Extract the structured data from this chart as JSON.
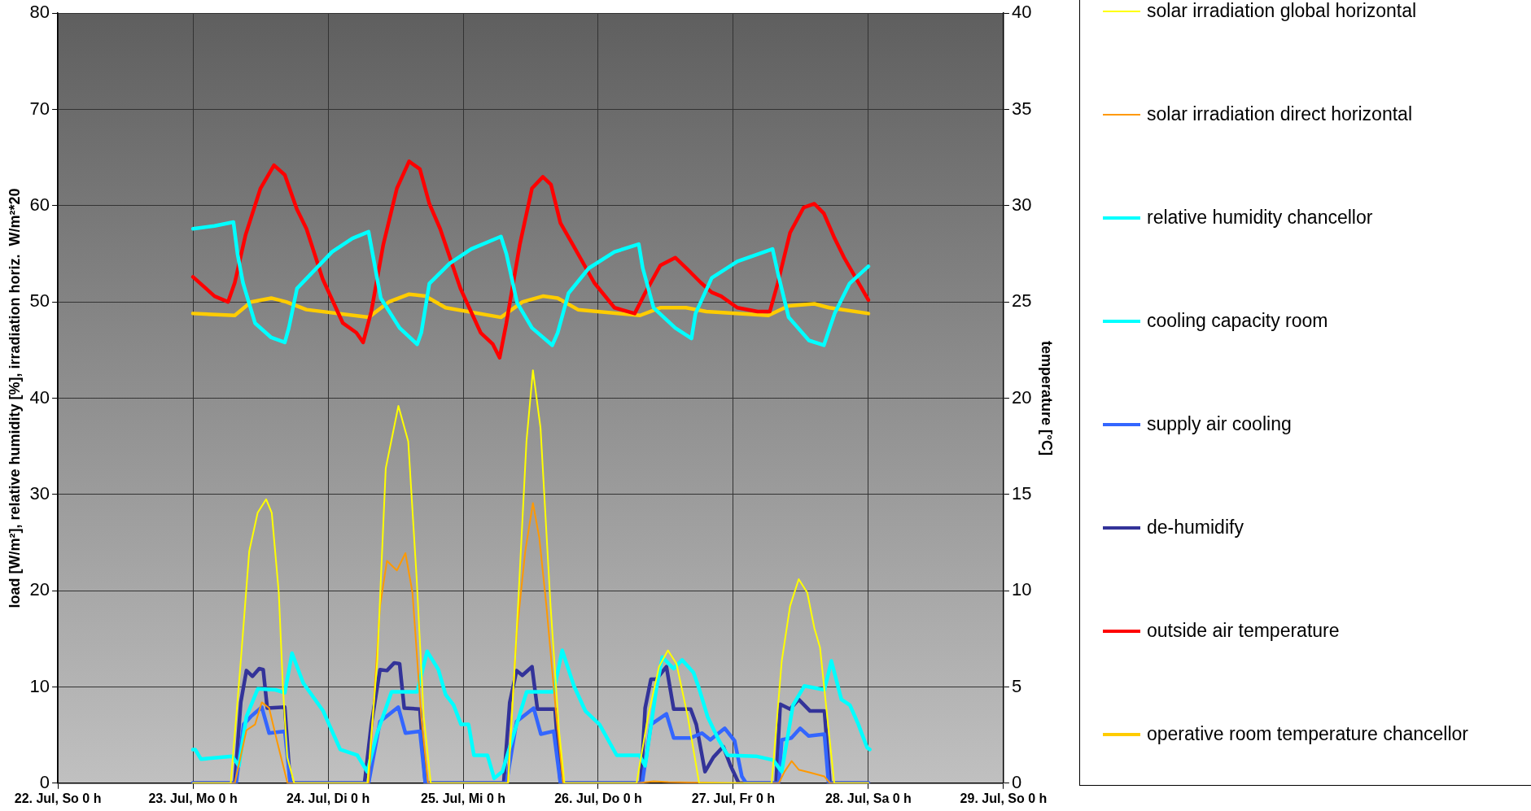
{
  "chart_data": {
    "type": "line",
    "ylabel": "load [W/m²], relative humidity [%], irradiation horiz.  W/m²*20",
    "y2label": "temperature [°C]",
    "xlim": [
      "--07-22",
      "--07-29"
    ],
    "xticks": [
      {
        "value": "--07-22",
        "label": "22. Jul, So 0 h"
      },
      {
        "value": "--07-23",
        "label": "23. Jul, Mo 0 h"
      },
      {
        "value": "--07-24",
        "label": "24. Jul, Di 0 h"
      },
      {
        "value": "--07-25",
        "label": "25. Jul, Mi 0 h"
      },
      {
        "value": "--07-26",
        "label": "26. Jul, Do 0 h"
      },
      {
        "value": "--07-27",
        "label": "27. Jul, Fr 0 h"
      },
      {
        "value": "--07-28",
        "label": "28. Jul, Sa 0 h"
      },
      {
        "value": "--07-29",
        "label": "29. Jul, So 0 h"
      }
    ],
    "ylim": [
      0,
      80
    ],
    "yticks": [
      0,
      10,
      20,
      30,
      40,
      50,
      60,
      70,
      80
    ],
    "y2lim": [
      0,
      40
    ],
    "y2ticks": [
      0,
      5,
      10,
      15,
      20,
      25,
      30,
      35,
      40
    ],
    "grid": true,
    "legend": "right",
    "marker": "none",
    "line_style": "solid",
    "series": [
      {
        "name": "solar irradiation global horizontal",
        "color": "#ffff00",
        "x": [
          "--07-23T00:00",
          "--07-23T06:43",
          "--07-23T08:30",
          "--07-23T10:00",
          "--07-23T11:30",
          "--07-23T13:00",
          "--07-23T14:00",
          "--07-23T15:15",
          "--07-23T16:00",
          "--07-23T16:45",
          "--07-23T18:00",
          "--07-24T07:00",
          "--07-24T08:45",
          "--07-24T10:15",
          "--07-24T12:30",
          "--07-24T14:15",
          "--07-24T15:45",
          "--07-24T17:00",
          "--07-24T18:15",
          "--07-25T08:00",
          "--07-25T09:45",
          "--07-25T11:15",
          "--07-25T12:24",
          "--07-25T13:45",
          "--07-25T15:32",
          "--07-25T17:02",
          "--07-25T18:00",
          "--07-26T06:49",
          "--07-26T08:50",
          "--07-26T10:48",
          "--07-26T12:23",
          "--07-26T13:54",
          "--07-26T15:55",
          "--07-26T17:56",
          "--07-27T06:49",
          "--07-27T08:36",
          "--07-27T10:05",
          "--07-27T11:37",
          "--07-27T13:08",
          "--07-27T14:24",
          "--07-27T15:24",
          "--07-27T16:41",
          "--07-27T17:56",
          "--07-28T00:00"
        ],
        "values": [
          0,
          0,
          12.7,
          24.1,
          28.1,
          29.5,
          28.1,
          19.8,
          9.8,
          2.7,
          0,
          0,
          12.7,
          32.7,
          39.2,
          35.5,
          21.2,
          6.9,
          0,
          0,
          18.4,
          35.5,
          42.9,
          36.9,
          18.4,
          5.5,
          0,
          0,
          6.9,
          12.1,
          13.8,
          12.4,
          6.9,
          0,
          0,
          12.7,
          18.4,
          21.2,
          19.8,
          16.1,
          14.1,
          6.9,
          0,
          0
        ]
      },
      {
        "name": "solar irradiation direct horizontal",
        "color": "#ff9900",
        "x": [
          "--07-23T00:00",
          "--07-23T07:26",
          "--07-23T09:30",
          "--07-23T11:02",
          "--07-23T12:14",
          "--07-23T13:32",
          "--07-23T15:03",
          "--07-23T16:48",
          "--07-24T07:12",
          "--07-24T09:14",
          "--07-24T10:28",
          "--07-24T12:14",
          "--07-24T13:45",
          "--07-24T15:00",
          "--07-24T16:34",
          "--07-24T17:46",
          "--07-25T07:55",
          "--07-25T09:30",
          "--07-25T11:02",
          "--07-25T12:24",
          "--07-25T13:32",
          "--07-25T14:48",
          "--07-25T16:34",
          "--07-25T17:46",
          "--07-26T07:12",
          "--07-26T09:50",
          "--07-26T12:29",
          "--07-26T23:02",
          "--07-27T08:05",
          "--07-27T09:06",
          "--07-27T10:22",
          "--07-27T11:37",
          "--07-27T13:38",
          "--07-27T16:11",
          "--07-27T17:11",
          "--07-28T00:00"
        ],
        "values": [
          0,
          0,
          5.5,
          6.1,
          8.4,
          7.8,
          4.1,
          0,
          0,
          18.4,
          23.1,
          22.1,
          23.9,
          19.8,
          6.9,
          0,
          0,
          15.5,
          24.1,
          29.1,
          25.5,
          18.4,
          6.9,
          0,
          0,
          0.2,
          0.1,
          0,
          0,
          1.2,
          2.3,
          1.4,
          1.1,
          0.7,
          0,
          0
        ]
      },
      {
        "name": "relative humidity chancellor",
        "color": "#00ffff",
        "x": [
          "--07-23T00:00",
          "--07-23T03:50",
          "--07-23T07:12",
          "--07-23T07:55",
          "--07-23T08:53",
          "--07-23T11:02",
          "--07-23T13:55",
          "--07-23T16:19",
          "--07-23T17:02",
          "--07-23T18:29",
          "--07-23T21:07",
          "--07-24T00:43",
          "--07-24T04:19",
          "--07-24T07:12",
          "--07-24T07:55",
          "--07-24T09:22",
          "--07-24T12:43",
          "--07-24T15:50",
          "--07-24T16:34",
          "--07-24T18:00",
          "--07-24T21:36",
          "--07-25T01:26",
          "--07-25T06:43",
          "--07-25T07:41",
          "--07-25T09:36",
          "--07-25T12:14",
          "--07-25T15:50",
          "--07-25T16:48",
          "--07-25T18:43",
          "--07-25T22:19",
          "--07-26T02:53",
          "--07-26T07:12",
          "--07-26T07:55",
          "--07-26T09:50",
          "--07-26T13:41",
          "--07-26T16:34",
          "--07-26T17:17",
          "--07-26T20:10",
          "--07-27T00:43",
          "--07-27T06:58",
          "--07-27T07:55",
          "--07-27T09:50",
          "--07-27T13:26",
          "--07-27T16:05",
          "--07-27T18:00",
          "--07-27T20:38",
          "--07-28T00:00"
        ],
        "values": [
          57.6,
          57.9,
          58.3,
          55,
          52,
          47.8,
          46.3,
          45.8,
          47.3,
          51.4,
          53,
          55.2,
          56.6,
          57.3,
          55,
          50.4,
          47.3,
          45.6,
          46.8,
          51.9,
          54,
          55.5,
          56.8,
          55,
          49.9,
          47.3,
          45.5,
          46.8,
          50.9,
          53.5,
          55.2,
          56,
          53.5,
          49.4,
          47.3,
          46.2,
          48.8,
          52.5,
          54.2,
          55.5,
          53,
          48.4,
          46,
          45.5,
          48.8,
          51.9,
          53.7
        ]
      },
      {
        "name": "cooling capacity room",
        "color": "#00ffff",
        "x": [
          "--07-23T00:00",
          "--07-23T00:24",
          "--07-23T01:25",
          "--07-23T06:58",
          "--07-23T08:10",
          "--07-23T09:30",
          "--07-23T11:31",
          "--07-23T14:38",
          "--07-23T16:19",
          "--07-23T17:36",
          "--07-23T19:36",
          "--07-23T23:08",
          "--07-24T02:10",
          "--07-24T05:12",
          "--07-24T06:58",
          "--07-24T08:44",
          "--07-24T11:17",
          "--07-24T15:50",
          "--07-24T17:36",
          "--07-24T19:36",
          "--07-24T20:53",
          "--07-24T22:19",
          "--07-24T23:38",
          "--07-25T00:58",
          "--07-25T01:55",
          "--07-25T04:19",
          "--07-25T05:31",
          "--07-25T06:58",
          "--07-25T08:47",
          "--07-25T11:17",
          "--07-25T16:05",
          "--07-25T17:36",
          "--07-25T19:41",
          "--07-25T21:43",
          "--07-26T00:14",
          "--07-26T03:17",
          "--07-26T07:19",
          "--07-26T08:20",
          "--07-26T10:19",
          "--07-26T11:23",
          "--07-26T13:24",
          "--07-26T14:54",
          "--07-26T16:55",
          "--07-26T17:56",
          "--07-26T19:26",
          "--07-26T21:29",
          "--07-26T22:59",
          "--07-27T04:02",
          "--07-27T07:05",
          "--07-27T08:36",
          "--07-27T10:36",
          "--07-27T12:37",
          "--07-27T16:11",
          "--07-27T17:25",
          "--07-27T19:12",
          "--07-27T20:43",
          "--07-27T22:13",
          "--07-27T23:46",
          "--07-28T00:14"
        ],
        "values": [
          3.5,
          3.5,
          2.5,
          2.8,
          1.8,
          6.9,
          9.8,
          9.7,
          9.4,
          13.5,
          10.4,
          7.5,
          3.5,
          2.9,
          1.2,
          5.2,
          9.5,
          9.5,
          13.7,
          11.8,
          9.2,
          8.1,
          6.1,
          6.1,
          2.9,
          2.9,
          0.5,
          1.2,
          4.7,
          9.5,
          9.5,
          13.8,
          10.1,
          7.5,
          6.1,
          2.9,
          2.9,
          1.8,
          9.8,
          13.1,
          11.9,
          12.8,
          11.5,
          9.8,
          6.9,
          4.4,
          2.9,
          2.8,
          2.4,
          1.2,
          8.1,
          10.1,
          9.7,
          12.7,
          8.7,
          8.1,
          6.1,
          3.7,
          3.5
        ]
      },
      {
        "name": "supply air cooling",
        "color": "#3366ff",
        "x": [
          "--07-23T00:00",
          "--07-23T07:41",
          "--07-23T09:00",
          "--07-23T10:15",
          "--07-23T12:14",
          "--07-23T13:32",
          "--07-23T16:19",
          "--07-23T17:17",
          "--07-24T07:12",
          "--07-24T09:14",
          "--07-24T12:29",
          "--07-24T13:45",
          "--07-24T16:19",
          "--07-24T17:17",
          "--07-25T07:41",
          "--07-25T09:30",
          "--07-25T12:32",
          "--07-25T13:48",
          "--07-25T16:05",
          "--07-25T17:17",
          "--07-26T07:49",
          "--07-26T09:22",
          "--07-26T12:07",
          "--07-26T13:24",
          "--07-26T16:25",
          "--07-26T18:26",
          "--07-26T19:55",
          "--07-26T22:29",
          "--07-27T00:14",
          "--07-27T01:31",
          "--07-27T02:17",
          "--07-27T08:05",
          "--07-27T08:36",
          "--07-27T10:19",
          "--07-27T11:53",
          "--07-27T13:24",
          "--07-27T16:11",
          "--07-27T16:55",
          "--07-28T00:00"
        ],
        "values": [
          0,
          0,
          6.1,
          6.9,
          7.9,
          5.2,
          5.4,
          0,
          0,
          6.4,
          7.9,
          5.2,
          5.4,
          0,
          0,
          6.4,
          7.8,
          5.1,
          5.4,
          0,
          0,
          6.1,
          7.2,
          4.7,
          4.7,
          5.2,
          4.5,
          5.7,
          4.4,
          0.7,
          0,
          0,
          4.5,
          4.7,
          5.7,
          4.9,
          5.1,
          0,
          0
        ]
      },
      {
        "name": "de-humidify",
        "color": "#333399",
        "x": [
          "--07-23T00:00",
          "--07-23T07:26",
          "--07-23T08:30",
          "--07-23T09:30",
          "--07-23T10:34",
          "--07-23T11:46",
          "--07-23T12:29",
          "--07-23T13:12",
          "--07-23T16:19",
          "--07-23T17:17",
          "--07-24T06:29",
          "--07-24T07:41",
          "--07-24T09:14",
          "--07-24T10:28",
          "--07-24T11:46",
          "--07-24T12:43",
          "--07-24T13:32",
          "--07-24T16:19",
          "--07-24T17:17",
          "--07-25T07:12",
          "--07-25T08:17",
          "--07-25T09:30",
          "--07-25T10:31",
          "--07-25T12:14",
          "--07-25T13:12",
          "--07-25T16:19",
          "--07-25T17:17",
          "--07-26T07:35",
          "--07-26T08:20",
          "--07-26T09:22",
          "--07-26T10:19",
          "--07-26T12:07",
          "--07-26T13:24",
          "--07-26T16:25",
          "--07-26T17:25",
          "--07-26T18:58",
          "--07-26T20:28",
          "--07-26T22:13",
          "--07-26T23:31",
          "--07-27T00:58",
          "--07-27T07:35",
          "--07-27T08:20",
          "--07-27T10:05",
          "--07-27T11:37",
          "--07-27T13:38",
          "--07-27T16:11",
          "--07-27T17:11",
          "--07-28T00:00"
        ],
        "values": [
          0,
          0,
          8.4,
          11.7,
          11.1,
          11.9,
          11.8,
          7.8,
          7.9,
          0,
          0,
          6.1,
          11.8,
          11.7,
          12.5,
          12.4,
          7.8,
          7.7,
          0,
          0,
          8.4,
          11.7,
          11.2,
          12.1,
          7.7,
          7.7,
          0,
          0,
          7.8,
          10.8,
          10.8,
          12.1,
          7.7,
          7.7,
          6.1,
          1.2,
          2.7,
          3.8,
          1.8,
          0,
          0,
          8.2,
          7.7,
          8.7,
          7.5,
          7.5,
          0,
          0
        ]
      },
      {
        "name": "outside air temperature",
        "color": "#ff0000",
        "axis": "y2",
        "x": [
          "--07-23T00:00",
          "--07-23T03:50",
          "--07-23T06:14",
          "--07-23T07:26",
          "--07-23T09:22",
          "--07-23T12:00",
          "--07-23T14:24",
          "--07-23T16:19",
          "--07-23T18:29",
          "--07-23T20:10",
          "--07-23T23:02",
          "--07-24T02:38",
          "--07-24T05:02",
          "--07-24T06:14",
          "--07-24T07:41",
          "--07-24T09:50",
          "--07-24T12:14",
          "--07-24T14:24",
          "--07-24T16:19",
          "--07-24T18:00",
          "--07-24T19:55",
          "--07-24T23:31",
          "--07-25T03:07",
          "--07-25T05:17",
          "--07-25T06:29",
          "--07-25T07:41",
          "--07-25T10:05",
          "--07-25T12:14",
          "--07-25T14:10",
          "--07-25T15:36",
          "--07-25T17:17",
          "--07-25T19:26",
          "--07-25T23:17",
          "--07-26T02:53",
          "--07-26T06:29",
          "--07-26T08:24",
          "--07-26T11:02",
          "--07-26T13:41",
          "--07-26T15:50",
          "--07-26T18:14",
          "--07-26T20:10",
          "--07-26T21:50",
          "--07-27T00:43",
          "--07-27T04:19",
          "--07-27T06:29",
          "--07-27T07:55",
          "--07-27T10:05",
          "--07-27T12:29",
          "--07-27T14:24",
          "--07-27T16:05",
          "--07-27T18:00",
          "--07-27T19:41",
          "--07-28T00:00"
        ],
        "values": [
          26.3,
          25.3,
          25,
          26,
          28.5,
          30.9,
          32.1,
          31.6,
          29.8,
          28.8,
          26.2,
          23.9,
          23.4,
          22.9,
          24.5,
          28,
          30.9,
          32.3,
          31.9,
          30.1,
          28.8,
          25.7,
          23.4,
          22.8,
          22.1,
          23.9,
          28,
          30.9,
          31.5,
          31.1,
          29.1,
          28,
          26,
          24.7,
          24.4,
          25.5,
          26.9,
          27.3,
          26.7,
          26,
          25.5,
          25.3,
          24.7,
          24.5,
          24.5,
          26,
          28.6,
          29.9,
          30.1,
          29.6,
          28.3,
          27.3,
          25.1
        ]
      },
      {
        "name": "operative room temperature chancellor",
        "color": "#ffcc00",
        "axis": "y2",
        "x": [
          "--07-23T00:00",
          "--07-23T07:26",
          "--07-23T10:19",
          "--07-23T13:55",
          "--07-23T16:34",
          "--07-23T20:10",
          "--07-24T07:12",
          "--07-24T10:48",
          "--07-24T14:24",
          "--07-24T17:17",
          "--07-24T20:53",
          "--07-25T06:43",
          "--07-25T10:34",
          "--07-25T14:10",
          "--07-25T16:48",
          "--07-25T20:24",
          "--07-26T07:26",
          "--07-26T11:02",
          "--07-26T15:36",
          "--07-26T19:12",
          "--07-27T06:14",
          "--07-27T09:50",
          "--07-27T14:24",
          "--07-27T17:02",
          "--07-28T00:00"
        ],
        "values": [
          24.4,
          24.3,
          25,
          25.2,
          25,
          24.6,
          24.2,
          25,
          25.4,
          25.3,
          24.7,
          24.2,
          25,
          25.3,
          25.2,
          24.6,
          24.3,
          24.7,
          24.7,
          24.5,
          24.3,
          24.8,
          24.9,
          24.7,
          24.4
        ]
      }
    ]
  }
}
